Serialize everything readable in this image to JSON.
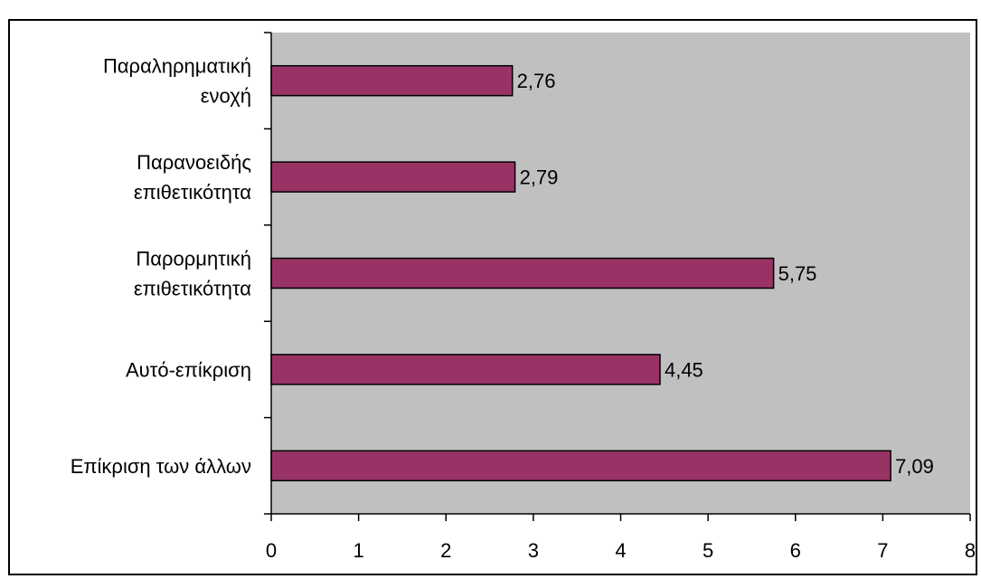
{
  "chart_data": {
    "type": "bar",
    "orientation": "horizontal",
    "title": "",
    "xlabel": "",
    "ylabel": "",
    "categories": [
      [
        "Παραληρηματική",
        "ενοχή"
      ],
      [
        "Παρανοειδής",
        "επιθετικότητα"
      ],
      [
        "Παρορμητική",
        "επιθετικότητα"
      ],
      [
        "Αυτό-επίκριση"
      ],
      [
        "Επίκριση των άλλων"
      ]
    ],
    "values": [
      2.76,
      2.79,
      5.75,
      4.45,
      7.09
    ],
    "value_labels": [
      "2,76",
      "2,79",
      "5,75",
      "4,45",
      "7,09"
    ],
    "xlim": [
      0,
      8
    ],
    "x_ticks": [
      0,
      1,
      2,
      3,
      4,
      5,
      6,
      7,
      8
    ],
    "grid": false,
    "legend": "none",
    "colors": {
      "bar_fill": "#993366",
      "plot_background": "#c0c0c0",
      "axis": "#000000"
    }
  }
}
